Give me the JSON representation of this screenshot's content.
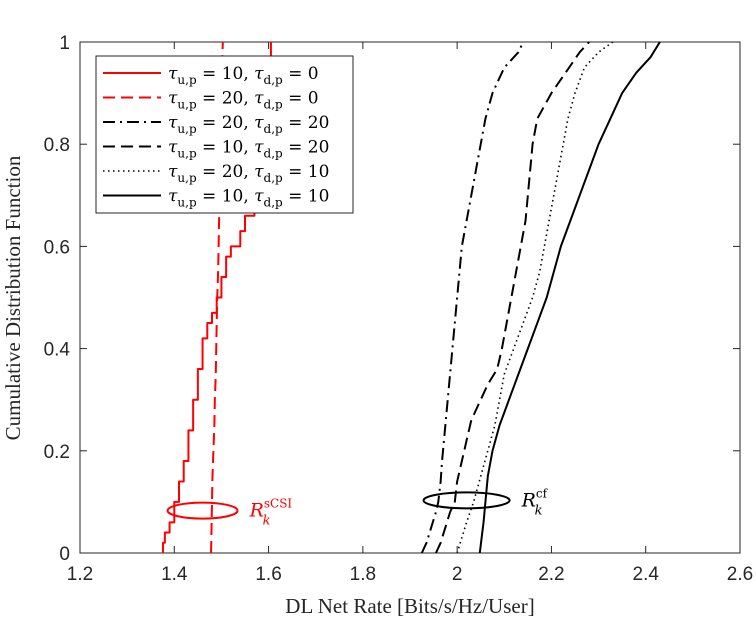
{
  "chart_data": {
    "type": "line",
    "xlabel": "DL Net Rate [Bits/s/Hz/User]",
    "ylabel": "Cumulative Distribution Function",
    "xlim": [
      1.2,
      2.6
    ],
    "ylim": [
      0,
      1
    ],
    "xticks": [
      "1.2",
      "1.4",
      "1.6",
      "1.8",
      "2",
      "2.2",
      "2.4",
      "2.6"
    ],
    "yticks": [
      "0",
      "0.2",
      "0.4",
      "0.6",
      "0.8",
      "1"
    ],
    "grid": false,
    "legend_position": "top-left",
    "series": [
      {
        "name": "τu,p = 10, τd,p = 0",
        "color": "#ff0000",
        "style": "solid",
        "points": [
          [
            1.376,
            0
          ],
          [
            1.376,
            0.02
          ],
          [
            1.38,
            0.02
          ],
          [
            1.38,
            0.04
          ],
          [
            1.39,
            0.04
          ],
          [
            1.39,
            0.06
          ],
          [
            1.4,
            0.06
          ],
          [
            1.4,
            0.1
          ],
          [
            1.41,
            0.1
          ],
          [
            1.41,
            0.14
          ],
          [
            1.42,
            0.14
          ],
          [
            1.42,
            0.18
          ],
          [
            1.43,
            0.18
          ],
          [
            1.43,
            0.24
          ],
          [
            1.44,
            0.24
          ],
          [
            1.44,
            0.3
          ],
          [
            1.45,
            0.3
          ],
          [
            1.45,
            0.36
          ],
          [
            1.46,
            0.36
          ],
          [
            1.46,
            0.42
          ],
          [
            1.47,
            0.42
          ],
          [
            1.47,
            0.45
          ],
          [
            1.48,
            0.45
          ],
          [
            1.48,
            0.47
          ],
          [
            1.49,
            0.47
          ],
          [
            1.49,
            0.5
          ],
          [
            1.5,
            0.5
          ],
          [
            1.5,
            0.54
          ],
          [
            1.51,
            0.54
          ],
          [
            1.51,
            0.58
          ],
          [
            1.52,
            0.58
          ],
          [
            1.52,
            0.6
          ],
          [
            1.54,
            0.6
          ],
          [
            1.54,
            0.63
          ],
          [
            1.55,
            0.63
          ],
          [
            1.55,
            0.66
          ],
          [
            1.57,
            0.66
          ],
          [
            1.57,
            0.7
          ],
          [
            1.58,
            0.7
          ],
          [
            1.58,
            0.76
          ],
          [
            1.59,
            0.76
          ],
          [
            1.59,
            0.84
          ],
          [
            1.6,
            0.84
          ],
          [
            1.6,
            0.9
          ],
          [
            1.605,
            0.9
          ],
          [
            1.605,
            1.0
          ]
        ]
      },
      {
        "name": "τu,p = 20, τd,p = 0",
        "color": "#ff0000",
        "style": "dashed",
        "points": [
          [
            1.478,
            0
          ],
          [
            1.479,
            0.05
          ],
          [
            1.48,
            0.1
          ],
          [
            1.481,
            0.15
          ],
          [
            1.483,
            0.2
          ],
          [
            1.485,
            0.25
          ],
          [
            1.486,
            0.3
          ],
          [
            1.488,
            0.35
          ],
          [
            1.489,
            0.4
          ],
          [
            1.49,
            0.45
          ],
          [
            1.491,
            0.5
          ],
          [
            1.493,
            0.55
          ],
          [
            1.494,
            0.6
          ],
          [
            1.495,
            0.65
          ],
          [
            1.496,
            0.7
          ],
          [
            1.497,
            0.75
          ],
          [
            1.498,
            0.8
          ],
          [
            1.499,
            0.85
          ],
          [
            1.5,
            0.9
          ],
          [
            1.501,
            0.95
          ],
          [
            1.503,
            1.0
          ]
        ]
      },
      {
        "name": "τu,p = 20, τd,p = 20",
        "color": "#000000",
        "style": "dashdot",
        "points": [
          [
            1.925,
            0
          ],
          [
            1.935,
            0.02
          ],
          [
            1.945,
            0.05
          ],
          [
            1.955,
            0.08
          ],
          [
            1.96,
            0.1
          ],
          [
            1.965,
            0.14
          ],
          [
            1.968,
            0.18
          ],
          [
            1.972,
            0.22
          ],
          [
            1.976,
            0.26
          ],
          [
            1.98,
            0.3
          ],
          [
            1.985,
            0.35
          ],
          [
            1.99,
            0.4
          ],
          [
            1.995,
            0.45
          ],
          [
            2.0,
            0.5
          ],
          [
            2.005,
            0.55
          ],
          [
            2.01,
            0.6
          ],
          [
            2.02,
            0.65
          ],
          [
            2.03,
            0.7
          ],
          [
            2.04,
            0.75
          ],
          [
            2.05,
            0.8
          ],
          [
            2.06,
            0.85
          ],
          [
            2.075,
            0.9
          ],
          [
            2.1,
            0.95
          ],
          [
            2.13,
            0.98
          ],
          [
            2.14,
            1.0
          ]
        ]
      },
      {
        "name": "τu,p = 10, τd,p = 20",
        "color": "#000000",
        "style": "dashed",
        "points": [
          [
            1.955,
            0
          ],
          [
            1.965,
            0.02
          ],
          [
            1.975,
            0.05
          ],
          [
            1.985,
            0.08
          ],
          [
            1.995,
            0.1
          ],
          [
            2.0,
            0.14
          ],
          [
            2.01,
            0.18
          ],
          [
            2.02,
            0.22
          ],
          [
            2.03,
            0.26
          ],
          [
            2.05,
            0.3
          ],
          [
            2.065,
            0.33
          ],
          [
            2.085,
            0.36
          ],
          [
            2.095,
            0.4
          ],
          [
            2.105,
            0.45
          ],
          [
            2.115,
            0.5
          ],
          [
            2.125,
            0.55
          ],
          [
            2.135,
            0.6
          ],
          [
            2.145,
            0.65
          ],
          [
            2.15,
            0.7
          ],
          [
            2.155,
            0.75
          ],
          [
            2.16,
            0.8
          ],
          [
            2.17,
            0.85
          ],
          [
            2.2,
            0.9
          ],
          [
            2.23,
            0.94
          ],
          [
            2.26,
            0.98
          ],
          [
            2.28,
            1.0
          ]
        ]
      },
      {
        "name": "τu,p = 20, τd,p = 10",
        "color": "#000000",
        "style": "dotted",
        "points": [
          [
            2.0,
            0
          ],
          [
            2.01,
            0.03
          ],
          [
            2.02,
            0.06
          ],
          [
            2.035,
            0.1
          ],
          [
            2.05,
            0.15
          ],
          [
            2.065,
            0.2
          ],
          [
            2.08,
            0.25
          ],
          [
            2.09,
            0.3
          ],
          [
            2.1,
            0.35
          ],
          [
            2.12,
            0.4
          ],
          [
            2.14,
            0.45
          ],
          [
            2.16,
            0.5
          ],
          [
            2.175,
            0.55
          ],
          [
            2.185,
            0.6
          ],
          [
            2.195,
            0.65
          ],
          [
            2.205,
            0.7
          ],
          [
            2.215,
            0.75
          ],
          [
            2.225,
            0.8
          ],
          [
            2.235,
            0.85
          ],
          [
            2.25,
            0.9
          ],
          [
            2.27,
            0.95
          ],
          [
            2.3,
            0.98
          ],
          [
            2.33,
            1.0
          ]
        ]
      },
      {
        "name": "τu,p = 10, τd,p = 10",
        "color": "#000000",
        "style": "solid",
        "points": [
          [
            2.048,
            0
          ],
          [
            2.052,
            0.03
          ],
          [
            2.056,
            0.06
          ],
          [
            2.06,
            0.1
          ],
          [
            2.065,
            0.15
          ],
          [
            2.075,
            0.2
          ],
          [
            2.09,
            0.25
          ],
          [
            2.11,
            0.3
          ],
          [
            2.13,
            0.35
          ],
          [
            2.15,
            0.4
          ],
          [
            2.17,
            0.45
          ],
          [
            2.19,
            0.5
          ],
          [
            2.205,
            0.55
          ],
          [
            2.22,
            0.6
          ],
          [
            2.24,
            0.65
          ],
          [
            2.26,
            0.7
          ],
          [
            2.28,
            0.75
          ],
          [
            2.3,
            0.8
          ],
          [
            2.325,
            0.85
          ],
          [
            2.35,
            0.9
          ],
          [
            2.38,
            0.94
          ],
          [
            2.41,
            0.97
          ],
          [
            2.43,
            1.0
          ]
        ]
      }
    ],
    "legend_labels": [
      {
        "tu": "10",
        "td": "0"
      },
      {
        "tu": "20",
        "td": "0"
      },
      {
        "tu": "20",
        "td": "20"
      },
      {
        "tu": "10",
        "td": "20"
      },
      {
        "tu": "20",
        "td": "10"
      },
      {
        "tu": "10",
        "td": "10"
      }
    ],
    "legend_symbols": {
      "tau": "τ",
      "sub_u": "u,p",
      "sub_d": "d,p",
      "eq": " = ",
      "sep": ", "
    },
    "annotations": [
      {
        "name": "scsi",
        "base": "R",
        "sub": "k",
        "sup": "sCSI",
        "color": "#ff0000",
        "center": [
          1.46,
          0.083
        ]
      },
      {
        "name": "cf",
        "base": "R",
        "sub": "k",
        "sup": "cf",
        "color": "#000000",
        "center": [
          2.02,
          0.103
        ]
      }
    ]
  }
}
